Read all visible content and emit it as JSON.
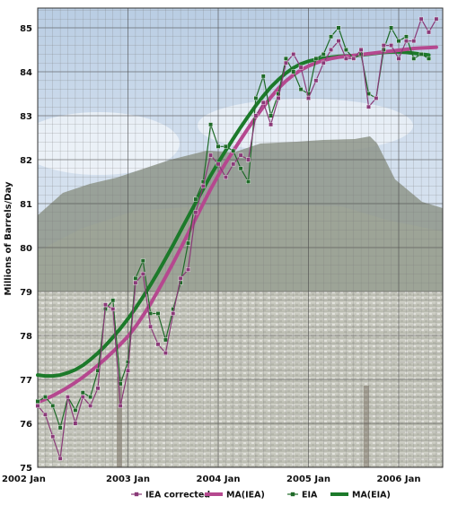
{
  "chart_data": {
    "type": "line",
    "title": "",
    "xlabel": "",
    "ylabel": "Millions of Barrels/Day",
    "x_tick_labels": [
      "2002 Jan",
      "2003 Jan",
      "2004 Jan",
      "2005 Jan",
      "2006 Jan"
    ],
    "y_tick_labels": [
      "75",
      "76",
      "77",
      "78",
      "79",
      "80",
      "81",
      "82",
      "83",
      "84",
      "85"
    ],
    "ylim": [
      75,
      85.4
    ],
    "grid": true,
    "legend_position": "bottom",
    "background": "photograph of a city below a flat-topped mountain (Table Mountain)",
    "x_unit": "months since 2002 Jan",
    "series": [
      {
        "name": "IEA corrected",
        "color": "#8a3a78",
        "style": "thin line with square markers",
        "x_start": 0,
        "values": [
          76.4,
          76.2,
          75.7,
          75.2,
          76.6,
          76.0,
          76.6,
          76.4,
          76.8,
          78.7,
          78.6,
          76.4,
          77.2,
          79.2,
          79.4,
          78.2,
          77.8,
          77.6,
          78.5,
          79.3,
          79.5,
          80.8,
          81.4,
          82.1,
          81.9,
          81.6,
          81.9,
          82.1,
          82.0,
          83.0,
          83.3,
          82.8,
          83.4,
          84.2,
          84.4,
          84.1,
          83.4,
          83.8,
          84.2,
          84.5,
          84.7,
          84.3,
          84.3,
          84.5,
          83.2,
          83.4,
          84.6,
          84.6,
          84.3,
          84.7,
          84.7,
          85.2,
          84.9,
          85.2
        ]
      },
      {
        "name": "MA(IEA)",
        "color": "#b5488f",
        "style": "thick smooth line",
        "x_start": 0,
        "values": [
          76.48,
          76.55,
          76.63,
          76.72,
          76.82,
          76.93,
          77.05,
          77.18,
          77.32,
          77.47,
          77.63,
          77.8,
          77.98,
          78.2,
          78.45,
          78.72,
          79.02,
          79.33,
          79.65,
          79.98,
          80.32,
          80.66,
          81.0,
          81.33,
          81.64,
          81.93,
          82.2,
          82.46,
          82.72,
          82.97,
          83.2,
          83.42,
          83.62,
          83.79,
          83.93,
          84.04,
          84.13,
          84.2,
          84.26,
          84.3,
          84.33,
          84.35,
          84.37,
          84.39,
          84.41,
          84.43,
          84.45,
          84.47,
          84.49,
          84.51,
          84.53,
          84.54,
          84.55,
          84.56
        ]
      },
      {
        "name": "EIA",
        "color": "#1f6a28",
        "style": "thin line with square markers",
        "x_start": 0,
        "values": [
          76.5,
          76.6,
          76.4,
          75.9,
          76.6,
          76.3,
          76.7,
          76.6,
          77.2,
          78.6,
          78.8,
          76.9,
          77.4,
          79.3,
          79.7,
          78.5,
          78.5,
          77.9,
          78.6,
          79.2,
          80.1,
          81.1,
          81.5,
          82.8,
          82.3,
          82.3,
          82.2,
          81.8,
          81.5,
          83.4,
          83.9,
          83.0,
          83.5,
          84.3,
          84.0,
          83.6,
          83.5,
          84.3,
          84.4,
          84.8,
          85.0,
          84.5,
          84.3,
          84.4,
          83.5,
          83.4,
          84.5,
          85.0,
          84.7,
          84.8,
          84.3,
          84.4,
          84.3
        ]
      },
      {
        "name": "MA(EIA)",
        "color": "#1c7a2a",
        "style": "thick smooth line",
        "x_start": 0,
        "values": [
          77.1,
          77.08,
          77.08,
          77.1,
          77.15,
          77.22,
          77.32,
          77.45,
          77.6,
          77.77,
          77.96,
          78.16,
          78.38,
          78.62,
          78.88,
          79.15,
          79.44,
          79.75,
          80.06,
          80.38,
          80.7,
          81.02,
          81.33,
          81.64,
          81.93,
          82.21,
          82.48,
          82.74,
          82.99,
          83.23,
          83.45,
          83.65,
          83.82,
          83.97,
          84.09,
          84.18,
          84.24,
          84.28,
          84.31,
          84.33,
          84.35,
          84.36,
          84.37,
          84.38,
          84.4,
          84.42,
          84.44,
          84.45,
          84.45,
          84.44,
          84.42,
          84.4,
          84.38
        ]
      }
    ]
  }
}
